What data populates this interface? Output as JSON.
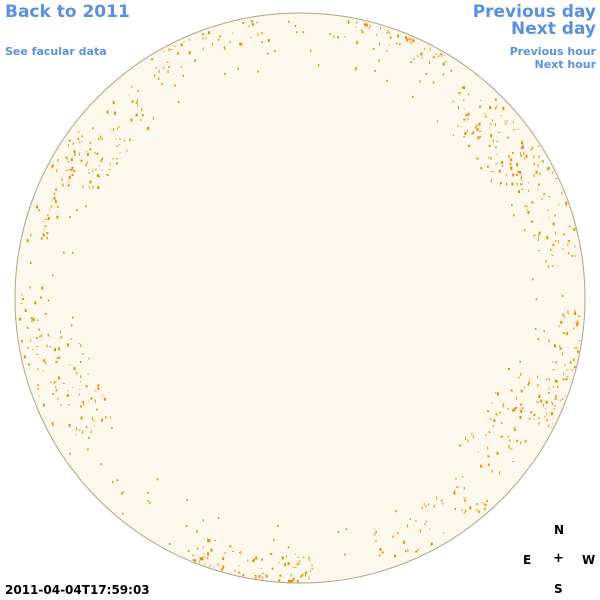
{
  "nav": {
    "back_label": "Back to 2011",
    "facular_label": "See facular data",
    "prev_day_label": "Previous day",
    "next_day_label": "Next day",
    "prev_hour_label": "Previous hour",
    "next_hour_label": "Next hour"
  },
  "image": {
    "timestamp": "2011-04-04T17:59:03",
    "disk_color": "#fdf8ec",
    "limb_color": "#b0a48a",
    "feature_color": "#ef8a10"
  },
  "compass": {
    "north": "N",
    "east": "E",
    "center": "+",
    "west": "W",
    "south": "S"
  }
}
